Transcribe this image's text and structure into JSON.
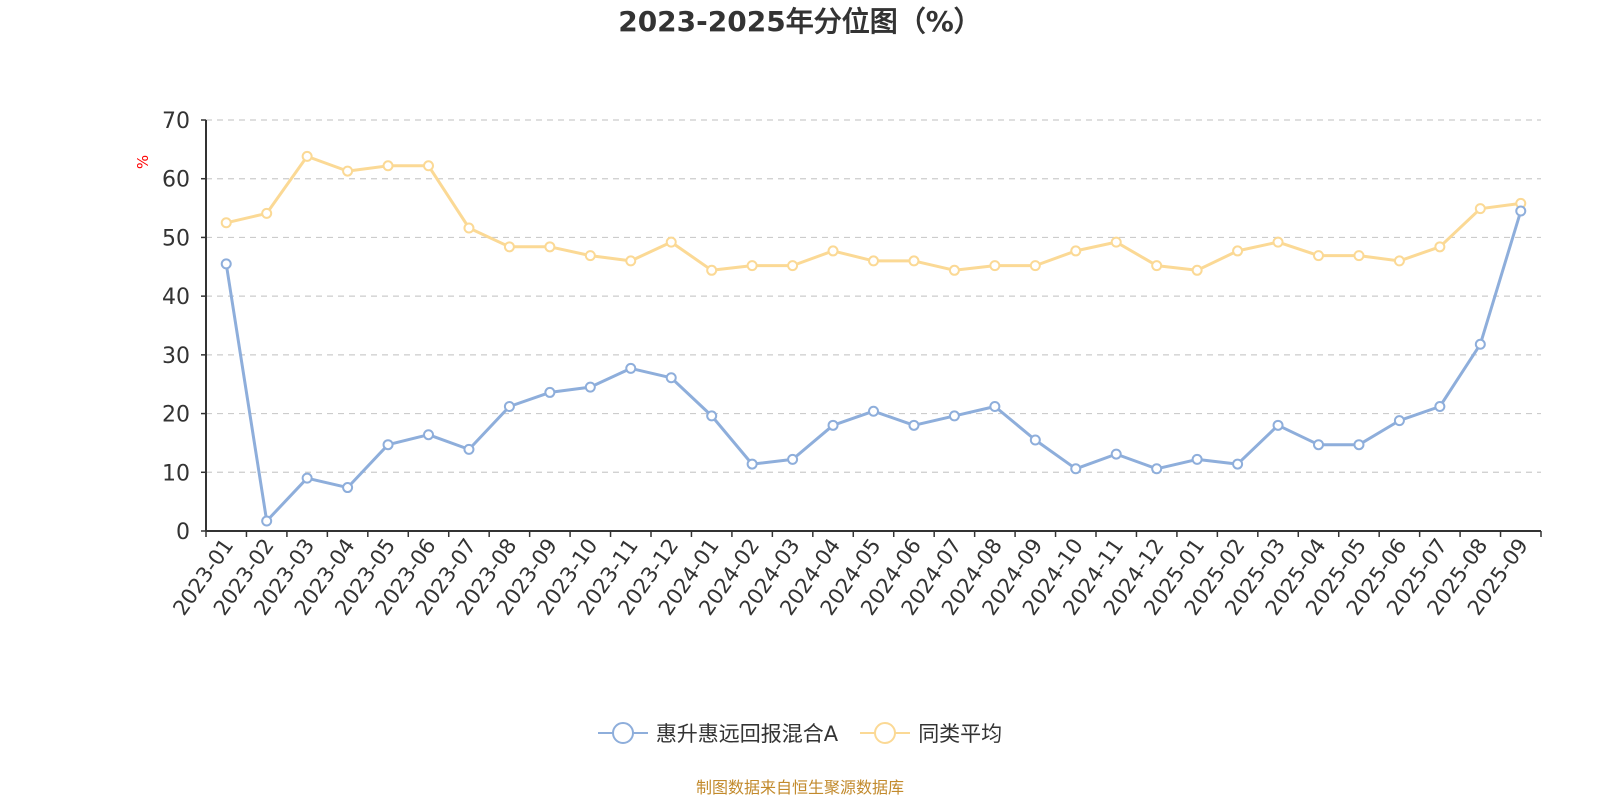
{
  "title": "2023-2025年分位图（%）",
  "source_note": "制图数据来自恒生聚源数据库",
  "colors": {
    "series_a": "#8eaedb",
    "series_b": "#fbd995",
    "ylabel": "#ff0000",
    "source": "#c28a2c",
    "grid": "#cccccc",
    "axis": "#333333"
  },
  "chart_data": {
    "type": "line",
    "title": "2023-2025年分位图（%）",
    "xlabel": "",
    "ylabel": "%",
    "ylim": [
      0,
      70
    ],
    "yticks": [
      0,
      10,
      20,
      30,
      40,
      50,
      60,
      70
    ],
    "grid": true,
    "legend_position": "bottom-center",
    "categories": [
      "2023-01",
      "2023-02",
      "2023-03",
      "2023-04",
      "2023-05",
      "2023-06",
      "2023-07",
      "2023-08",
      "2023-09",
      "2023-10",
      "2023-11",
      "2023-12",
      "2024-01",
      "2024-02",
      "2024-03",
      "2024-04",
      "2024-05",
      "2024-06",
      "2024-07",
      "2024-08",
      "2024-09",
      "2024-10",
      "2024-11",
      "2024-12",
      "2025-01",
      "2025-02",
      "2025-03",
      "2025-04",
      "2025-05",
      "2025-06",
      "2025-07",
      "2025-08",
      "2025-09"
    ],
    "series": [
      {
        "name": "惠升惠远回报混合A",
        "color": "#8eaedb",
        "values": [
          45.5,
          1.7,
          9.0,
          7.4,
          14.7,
          16.4,
          13.9,
          21.2,
          23.6,
          24.5,
          27.7,
          26.1,
          19.6,
          11.4,
          12.2,
          18.0,
          20.4,
          18.0,
          19.6,
          21.2,
          15.5,
          10.6,
          13.1,
          10.6,
          12.2,
          11.4,
          18.0,
          14.7,
          14.7,
          18.8,
          21.2,
          31.8,
          54.5
        ]
      },
      {
        "name": "同类平均",
        "color": "#fbd995",
        "values": [
          52.5,
          54.1,
          63.8,
          61.3,
          62.2,
          62.2,
          51.6,
          48.4,
          48.4,
          46.9,
          46.0,
          49.2,
          44.4,
          45.2,
          45.2,
          47.7,
          46.0,
          46.0,
          44.4,
          45.2,
          45.2,
          47.7,
          49.2,
          45.2,
          44.4,
          47.7,
          49.2,
          46.9,
          46.9,
          46.0,
          48.4,
          54.9,
          55.8
        ]
      }
    ]
  }
}
